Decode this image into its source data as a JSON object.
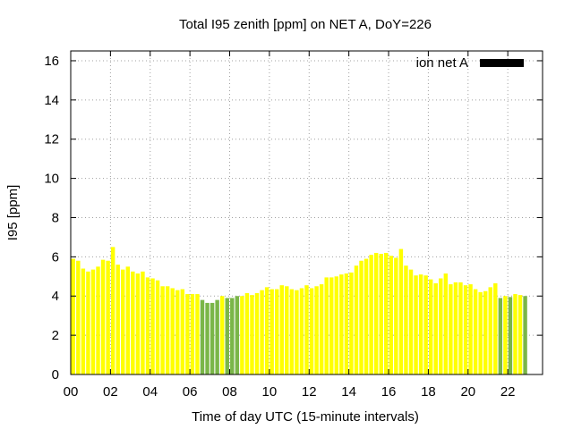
{
  "chart_data": {
    "type": "bar",
    "title": "Total I95 zenith [ppm] on NET A, DoY=226",
    "xlabel": "Time of day UTC (15-minute intervals)",
    "ylabel": "I95 [ppm]",
    "xlim": [
      0,
      23.75
    ],
    "ylim": [
      0,
      16.5
    ],
    "grid": true,
    "legend_position": "top-right",
    "legend": {
      "label": "ion net A",
      "color": "#000000"
    },
    "x_ticks": [
      {
        "value": 0,
        "label": "00"
      },
      {
        "value": 2,
        "label": "02"
      },
      {
        "value": 4,
        "label": "04"
      },
      {
        "value": 6,
        "label": "06"
      },
      {
        "value": 8,
        "label": "08"
      },
      {
        "value": 10,
        "label": "10"
      },
      {
        "value": 12,
        "label": "12"
      },
      {
        "value": 14,
        "label": "14"
      },
      {
        "value": 16,
        "label": "16"
      },
      {
        "value": 18,
        "label": "18"
      },
      {
        "value": 20,
        "label": "20"
      },
      {
        "value": 22,
        "label": "22"
      }
    ],
    "y_ticks": [
      {
        "value": 0,
        "label": "0"
      },
      {
        "value": 2,
        "label": "2"
      },
      {
        "value": 4,
        "label": "4"
      },
      {
        "value": 6,
        "label": "6"
      },
      {
        "value": 8,
        "label": "8"
      },
      {
        "value": 10,
        "label": "10"
      },
      {
        "value": 12,
        "label": "12"
      },
      {
        "value": 14,
        "label": "14"
      },
      {
        "value": 16,
        "label": "16"
      }
    ],
    "bar_interval_hours": 0.25,
    "colors": {
      "yellow": "#ffff00",
      "green": "#7ab648"
    },
    "values": [
      5.9,
      5.8,
      5.4,
      5.25,
      5.35,
      5.5,
      5.85,
      5.8,
      6.5,
      5.6,
      5.35,
      5.5,
      5.25,
      5.15,
      5.25,
      4.95,
      4.9,
      4.8,
      4.5,
      4.5,
      4.4,
      4.3,
      4.35,
      4.1,
      4.1,
      4.1,
      3.8,
      3.65,
      3.65,
      3.8,
      4.0,
      3.9,
      3.9,
      4.0,
      4.0,
      4.15,
      4.05,
      4.15,
      4.3,
      4.45,
      4.35,
      4.35,
      4.55,
      4.5,
      4.35,
      4.3,
      4.4,
      4.55,
      4.4,
      4.5,
      4.6,
      4.95,
      4.95,
      5.0,
      5.1,
      5.15,
      5.2,
      5.55,
      5.8,
      5.9,
      6.1,
      6.2,
      6.15,
      6.2,
      6.05,
      5.95,
      6.4,
      5.55,
      5.35,
      5.05,
      5.1,
      5.05,
      4.85,
      4.65,
      4.9,
      5.15,
      4.6,
      4.7,
      4.7,
      4.55,
      4.6,
      4.35,
      4.2,
      4.25,
      4.45,
      4.65,
      3.9,
      4.0,
      3.95,
      4.1,
      4.05,
      4.0
    ],
    "bar_colors": [
      "yellow",
      "yellow",
      "yellow",
      "yellow",
      "yellow",
      "yellow",
      "yellow",
      "yellow",
      "yellow",
      "yellow",
      "yellow",
      "yellow",
      "yellow",
      "yellow",
      "yellow",
      "yellow",
      "yellow",
      "yellow",
      "yellow",
      "yellow",
      "yellow",
      "yellow",
      "yellow",
      "yellow",
      "yellow",
      "yellow",
      "green",
      "green",
      "green",
      "green",
      "yellow",
      "green",
      "green",
      "green",
      "yellow",
      "yellow",
      "yellow",
      "yellow",
      "yellow",
      "yellow",
      "yellow",
      "yellow",
      "yellow",
      "yellow",
      "yellow",
      "yellow",
      "yellow",
      "yellow",
      "yellow",
      "yellow",
      "yellow",
      "yellow",
      "yellow",
      "yellow",
      "yellow",
      "yellow",
      "yellow",
      "yellow",
      "yellow",
      "yellow",
      "yellow",
      "yellow",
      "yellow",
      "yellow",
      "yellow",
      "yellow",
      "yellow",
      "yellow",
      "yellow",
      "yellow",
      "yellow",
      "yellow",
      "yellow",
      "yellow",
      "yellow",
      "yellow",
      "yellow",
      "yellow",
      "yellow",
      "yellow",
      "yellow",
      "yellow",
      "yellow",
      "yellow",
      "yellow",
      "yellow",
      "green",
      "yellow",
      "green",
      "yellow",
      "yellow",
      "green"
    ]
  }
}
